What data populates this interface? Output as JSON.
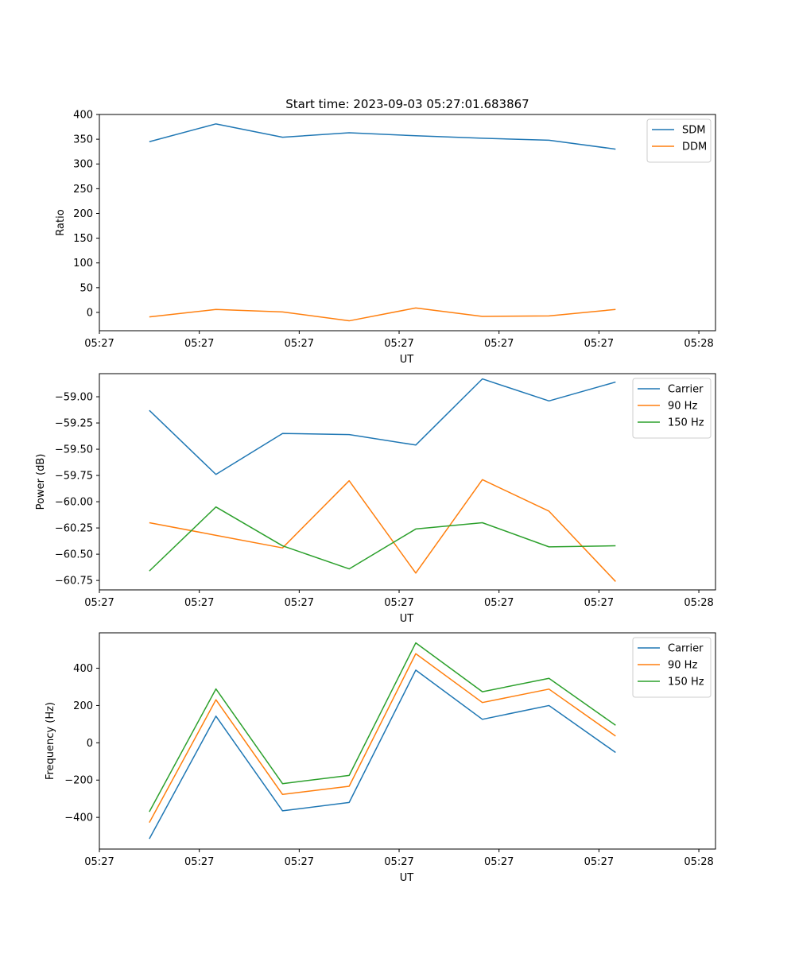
{
  "title": "Start time: 2023-09-03 05:27:01.683867",
  "chart_data": [
    {
      "type": "line",
      "ylabel": "Ratio",
      "xlabel": "UT",
      "xlim": [
        0,
        9.25
      ],
      "ylim": [
        -37,
        400
      ],
      "x": [
        0.75,
        1.75,
        2.75,
        3.75,
        4.75,
        5.75,
        6.75,
        7.75
      ],
      "x_ticks": [
        0,
        1.5,
        3,
        4.5,
        6,
        7.5,
        9
      ],
      "x_tick_labels": [
        "05:27",
        "05:27",
        "05:27",
        "05:27",
        "05:27",
        "05:27",
        "05:28"
      ],
      "y_ticks": [
        0,
        50,
        100,
        150,
        200,
        250,
        300,
        350,
        400
      ],
      "y_tick_labels": [
        "0",
        "50",
        "100",
        "150",
        "200",
        "250",
        "300",
        "350",
        "400"
      ],
      "legend_position": "top-right",
      "series": [
        {
          "name": "SDM",
          "color": "#1f77b4",
          "values": [
            345,
            381,
            354,
            363,
            357,
            352,
            348,
            330
          ]
        },
        {
          "name": "DDM",
          "color": "#ff7f0e",
          "values": [
            -9,
            6,
            1,
            -17,
            9,
            -8,
            -7,
            6
          ]
        }
      ]
    },
    {
      "type": "line",
      "ylabel": "Power (dB)",
      "xlabel": "UT",
      "xlim": [
        0,
        9.25
      ],
      "ylim": [
        -60.84,
        -58.78
      ],
      "x": [
        0.75,
        1.75,
        2.75,
        3.75,
        4.75,
        5.75,
        6.75,
        7.75
      ],
      "x_ticks": [
        0,
        1.5,
        3,
        4.5,
        6,
        7.5,
        9
      ],
      "x_tick_labels": [
        "05:27",
        "05:27",
        "05:27",
        "05:27",
        "05:27",
        "05:27",
        "05:28"
      ],
      "y_ticks": [
        -60.75,
        -60.5,
        -60.25,
        -60.0,
        -59.75,
        -59.5,
        -59.25,
        -59.0
      ],
      "y_tick_labels": [
        "−60.75",
        "−60.50",
        "−60.25",
        "−60.00",
        "−59.75",
        "−59.50",
        "−59.25",
        "−59.00"
      ],
      "legend_position": "top-right",
      "series": [
        {
          "name": "Carrier",
          "color": "#1f77b4",
          "values": [
            -59.13,
            -59.74,
            -59.35,
            -59.36,
            -59.46,
            -58.83,
            -59.04,
            -58.86
          ]
        },
        {
          "name": "90 Hz",
          "color": "#ff7f0e",
          "values": [
            -60.2,
            -60.32,
            -60.44,
            -59.8,
            -60.68,
            -59.79,
            -60.09,
            -60.76
          ]
        },
        {
          "name": "150 Hz",
          "color": "#2ca02c",
          "values": [
            -60.66,
            -60.05,
            -60.42,
            -60.64,
            -60.26,
            -60.2,
            -60.43,
            -60.42
          ]
        }
      ]
    },
    {
      "type": "line",
      "ylabel": "Frequency (Hz)",
      "xlabel": "UT",
      "xlim": [
        0,
        9.25
      ],
      "ylim": [
        -570,
        590
      ],
      "x": [
        0.75,
        1.75,
        2.75,
        3.75,
        4.75,
        5.75,
        6.75,
        7.75
      ],
      "x_ticks": [
        0,
        1.5,
        3,
        4.5,
        6,
        7.5,
        9
      ],
      "x_tick_labels": [
        "05:27",
        "05:27",
        "05:27",
        "05:27",
        "05:27",
        "05:27",
        "05:28"
      ],
      "y_ticks": [
        -400,
        -200,
        0,
        200,
        400
      ],
      "y_tick_labels": [
        "−400",
        "−200",
        "0",
        "200",
        "400"
      ],
      "legend_position": "top-right",
      "series": [
        {
          "name": "Carrier",
          "color": "#1f77b4",
          "values": [
            -515,
            143,
            -365,
            -320,
            390,
            126,
            200,
            -52
          ]
        },
        {
          "name": "90 Hz",
          "color": "#ff7f0e",
          "values": [
            -428,
            231,
            -277,
            -233,
            478,
            216,
            288,
            36
          ]
        },
        {
          "name": "150 Hz",
          "color": "#2ca02c",
          "values": [
            -370,
            289,
            -219,
            -175,
            536,
            274,
            346,
            94
          ]
        }
      ]
    }
  ]
}
